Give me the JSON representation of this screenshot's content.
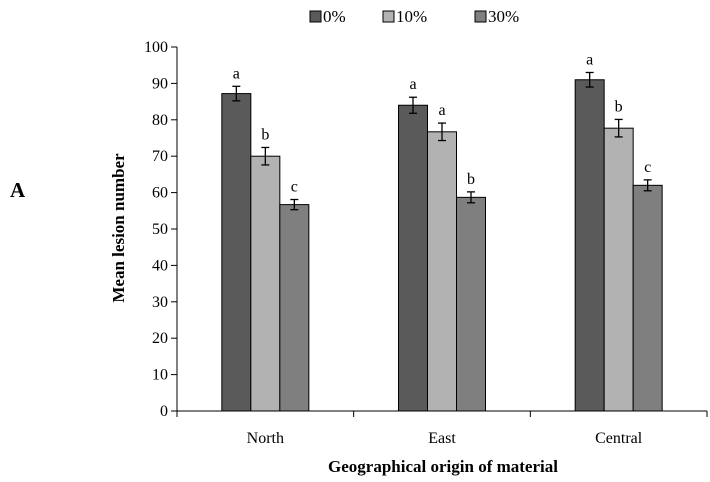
{
  "panel_label": "A",
  "chart_data": {
    "type": "bar",
    "xlabel": "Geographical origin of material",
    "ylabel": "Mean lesion number",
    "ylim": [
      0,
      100
    ],
    "yticks": [
      0,
      10,
      20,
      30,
      40,
      50,
      60,
      70,
      80,
      90,
      100
    ],
    "grid": false,
    "legend_position": "top",
    "categories": [
      "North",
      "East",
      "Central"
    ],
    "series": [
      {
        "name": "0%",
        "color": "#5a5a5a",
        "values": [
          87.2,
          84.0,
          91.0
        ],
        "errors": [
          2.0,
          2.2,
          2.0
        ],
        "letters": [
          "a",
          "a",
          "a"
        ]
      },
      {
        "name": "10%",
        "color": "#b2b2b2",
        "values": [
          70.0,
          76.7,
          77.7
        ],
        "errors": [
          2.4,
          2.4,
          2.4
        ],
        "letters": [
          "b",
          "a",
          "b"
        ]
      },
      {
        "name": "30%",
        "color": "#7f7f7f",
        "values": [
          56.7,
          58.7,
          62.0
        ],
        "errors": [
          1.4,
          1.5,
          1.5
        ],
        "letters": [
          "c",
          "b",
          "c"
        ]
      }
    ]
  }
}
